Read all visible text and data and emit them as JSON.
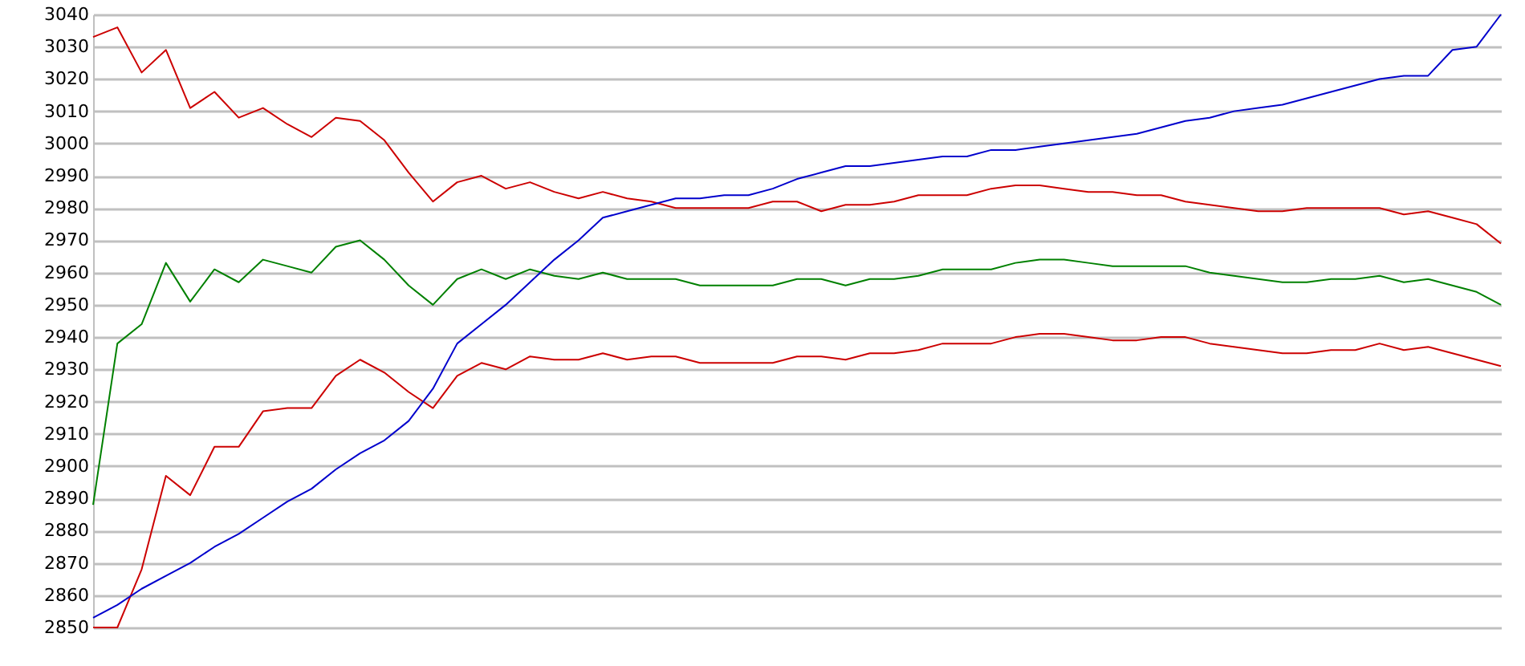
{
  "chart_data": {
    "type": "line",
    "categories": [
      null,
      null,
      null,
      null,
      null,
      null,
      null,
      null,
      null,
      null,
      null,
      null,
      null,
      null,
      null,
      null,
      null,
      null,
      null,
      null,
      null,
      null,
      null,
      null,
      null,
      null,
      null,
      null,
      null,
      null,
      null,
      null,
      null,
      null,
      null,
      null,
      null,
      null,
      null,
      null,
      null,
      null,
      null,
      null,
      null,
      null,
      null,
      null,
      null,
      null,
      null,
      null,
      null,
      null,
      null,
      null,
      null,
      null,
      null
    ],
    "series": [
      {
        "color": "#cc0000",
        "values": [
          3033,
          3036,
          3022,
          3029,
          3011,
          3016,
          3008,
          3011,
          3006,
          3002,
          3008,
          3007,
          3001,
          2991,
          2982,
          2988,
          2990,
          2986,
          2988,
          2985,
          2983,
          2985,
          2983,
          2982,
          2980,
          2980,
          2980,
          2980,
          2982,
          2982,
          2979,
          2981,
          2981,
          2982,
          2984,
          2984,
          2984,
          2986,
          2987,
          2987,
          2986,
          2985,
          2985,
          2984,
          2984,
          2982,
          2981,
          2980,
          2979,
          2979,
          2980,
          2980,
          2980,
          2980,
          2978,
          2979,
          2977,
          2975,
          2969
        ]
      },
      {
        "color": "#008000",
        "values": [
          2888,
          2938,
          2944,
          2963,
          2951,
          2961,
          2957,
          2964,
          2962,
          2960,
          2968,
          2970,
          2964,
          2956,
          2950,
          2958,
          2961,
          2958,
          2961,
          2959,
          2958,
          2960,
          2958,
          2958,
          2958,
          2956,
          2956,
          2956,
          2956,
          2958,
          2958,
          2956,
          2958,
          2958,
          2959,
          2961,
          2961,
          2961,
          2963,
          2964,
          2964,
          2963,
          2962,
          2962,
          2962,
          2962,
          2960,
          2959,
          2958,
          2957,
          2957,
          2958,
          2958,
          2959,
          2957,
          2958,
          2956,
          2954,
          2950
        ]
      },
      {
        "color": "#cc0000",
        "values": [
          2850,
          2850,
          2868,
          2897,
          2891,
          2906,
          2906,
          2917,
          2918,
          2918,
          2928,
          2933,
          2929,
          2923,
          2918,
          2928,
          2932,
          2930,
          2934,
          2933,
          2933,
          2935,
          2933,
          2934,
          2934,
          2932,
          2932,
          2932,
          2932,
          2934,
          2934,
          2933,
          2935,
          2935,
          2936,
          2938,
          2938,
          2938,
          2940,
          2941,
          2941,
          2940,
          2939,
          2939,
          2940,
          2940,
          2938,
          2937,
          2936,
          2935,
          2935,
          2936,
          2936,
          2938,
          2936,
          2937,
          2935,
          2933,
          2931
        ]
      },
      {
        "color": "#0000cc",
        "values": [
          2853,
          2857,
          2862,
          2866,
          2870,
          2875,
          2879,
          2884,
          2889,
          2893,
          2899,
          2904,
          2908,
          2914,
          2924,
          2938,
          2944,
          2950,
          2957,
          2964,
          2970,
          2977,
          2979,
          2981,
          2983,
          2983,
          2984,
          2984,
          2986,
          2989,
          2991,
          2993,
          2993,
          2994,
          2995,
          2996,
          2996,
          2998,
          2998,
          2999,
          3000,
          3001,
          3002,
          3003,
          3005,
          3007,
          3008,
          3010,
          3011,
          3012,
          3014,
          3016,
          3018,
          3020,
          3021,
          3021,
          3029,
          3030,
          3040
        ]
      }
    ],
    "ylim": [
      2850,
      3040
    ],
    "yticks": [
      2850,
      2860,
      2870,
      2880,
      2890,
      2900,
      2910,
      2920,
      2930,
      2940,
      2950,
      2960,
      2970,
      2980,
      2990,
      3000,
      3010,
      3020,
      3030,
      3040
    ],
    "grid": "y",
    "tick_labels": "y",
    "marker": "none",
    "line_style": "solid"
  }
}
